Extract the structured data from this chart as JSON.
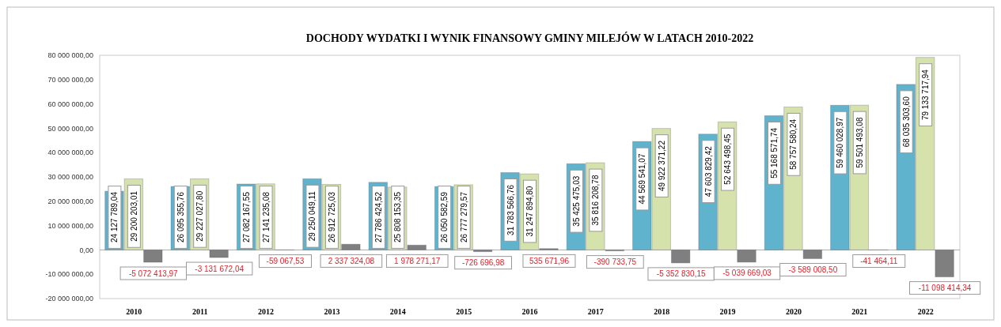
{
  "chart_data": {
    "type": "bar",
    "title": "DOCHODY WYDATKI  I WYNIK FINANSOWY GMINY  MILEJÓW W LATACH 2010-2022",
    "categories": [
      "2010",
      "2011",
      "2012",
      "2013",
      "2014",
      "2015",
      "2016",
      "2017",
      "2018",
      "2019",
      "2020",
      "2021",
      "2022"
    ],
    "series": [
      {
        "color": "#5fb3cc",
        "values": [
          24127789.04,
          26095355.76,
          27082167.55,
          29250049.11,
          27786424.52,
          26050582.59,
          31783566.76,
          35425475.03,
          44569541.07,
          47603829.42,
          55168571.74,
          59460028.97,
          68035303.6
        ],
        "value_labels": [
          "24 127 789,04",
          "26 095 355,76",
          "27 082 167,55",
          "29 250 049,11",
          "27 786 424,52",
          "26 050 582,59",
          "31 783 566,76",
          "35 425 475,03",
          "44 569 541,07",
          "47 603 829,42",
          "55 168 571,74",
          "59 460 028,97",
          "68 035 303,60"
        ]
      },
      {
        "color": "#d6e2ac",
        "values": [
          29200203.01,
          29227027.8,
          27141235.08,
          26912725.03,
          25808153.35,
          26777279.57,
          31247894.8,
          35816208.78,
          49922371.22,
          52643498.45,
          58757580.24,
          59501493.08,
          79133717.94
        ],
        "value_labels": [
          "29 200 203,01",
          "29 227 027,80",
          "27 141 235,08",
          "26 912 725,03",
          "25 808 153,35",
          "26 777 279,57",
          "31 247 894,80",
          "35 816 208,78",
          "49 922 371,22",
          "52 643 498,45",
          "58 757 580,24",
          "59 501 493,08",
          "79 133 717,94"
        ]
      },
      {
        "color": "#7f7f7f",
        "values": [
          -5072413.97,
          -3131672.04,
          -59067.53,
          2337324.08,
          1978271.17,
          -726696.98,
          535671.96,
          -390733.75,
          -5352830.15,
          -5039669.03,
          -3589008.5,
          -41464.11,
          -11098414.34
        ],
        "value_labels": [
          "-5 072 413,97",
          "-3 131 672,04",
          "-59 067,53",
          "2 337 324,08",
          "1 978 271,17",
          "-726 696,98",
          "535 671,96",
          "-390 733,75",
          "-5 352 830,15",
          "-5 039 669,03",
          "-3 589 008,50",
          "-41 464,11",
          "-11 098 414,34"
        ]
      }
    ],
    "ylim": [
      -20000000,
      80000000
    ],
    "yticks": [
      {
        "value": -20000000,
        "label": "-20 000 000,00"
      },
      {
        "value": -10000000,
        "label": "-10 000 000,00"
      },
      {
        "value": 0,
        "label": "0,00"
      },
      {
        "value": 10000000,
        "label": "10 000 000,00"
      },
      {
        "value": 20000000,
        "label": "20 000 000,00"
      },
      {
        "value": 30000000,
        "label": "30 000 000,00"
      },
      {
        "value": 40000000,
        "label": "40 000 000,00"
      },
      {
        "value": 50000000,
        "label": "50 000 000,00"
      },
      {
        "value": 60000000,
        "label": "60 000 000,00"
      },
      {
        "value": 70000000,
        "label": "70 000 000,00"
      },
      {
        "value": 80000000,
        "label": "80 000 000,00"
      }
    ],
    "legend": false
  }
}
